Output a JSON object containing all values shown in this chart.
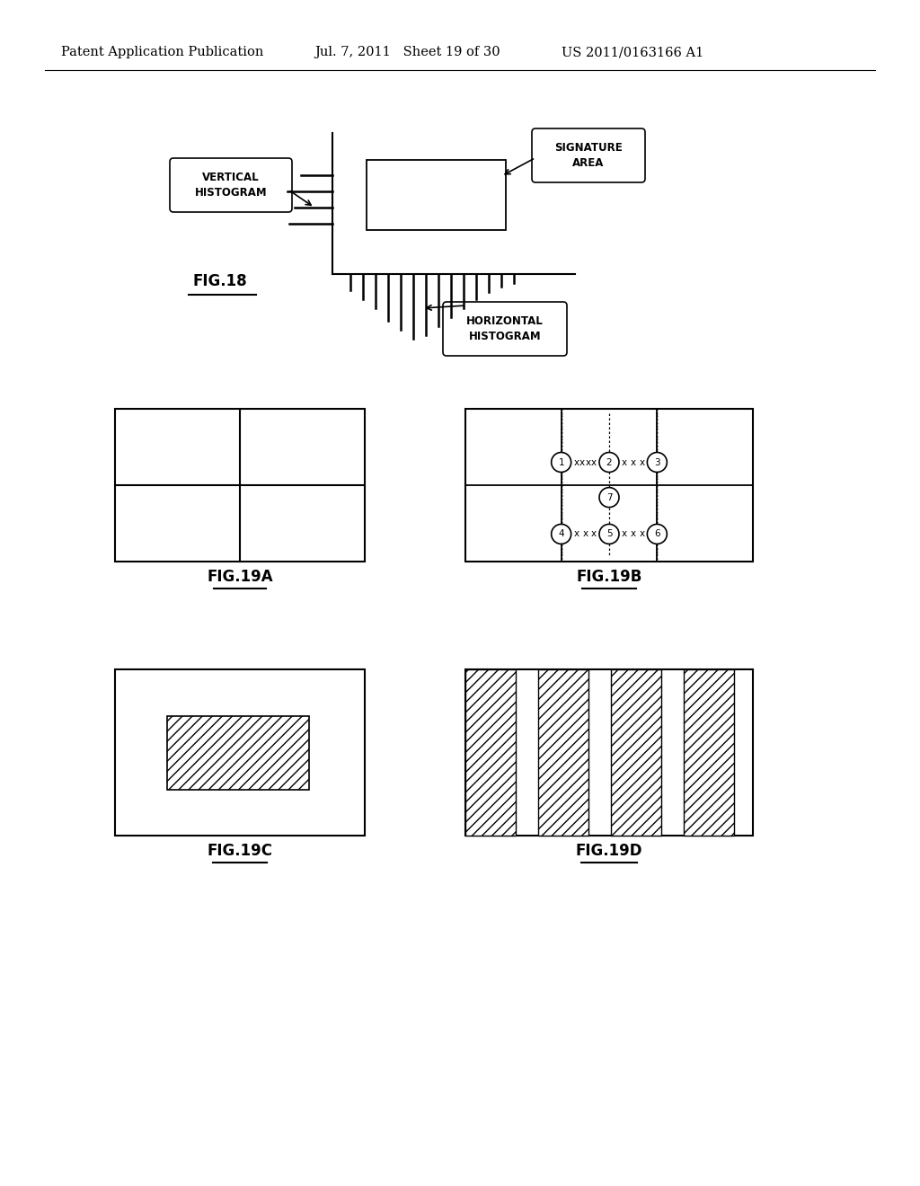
{
  "bg_color": "#ffffff",
  "header_left": "Patent Application Publication",
  "header_mid": "Jul. 7, 2011   Sheet 19 of 30",
  "header_right": "US 2011/0163166 A1",
  "fig18_label": "FIG.18",
  "fig19a_label": "FIG.19A",
  "fig19b_label": "FIG.19B",
  "fig19c_label": "FIG.19C",
  "fig19d_label": "FIG.19D",
  "label_vertical_histogram": "VERTICAL\nHISTOGRAM",
  "label_signature_area": "SIGNATURE\nAREA",
  "label_horizontal_histogram": "HORIZONTAL\nHISTOGRAM"
}
